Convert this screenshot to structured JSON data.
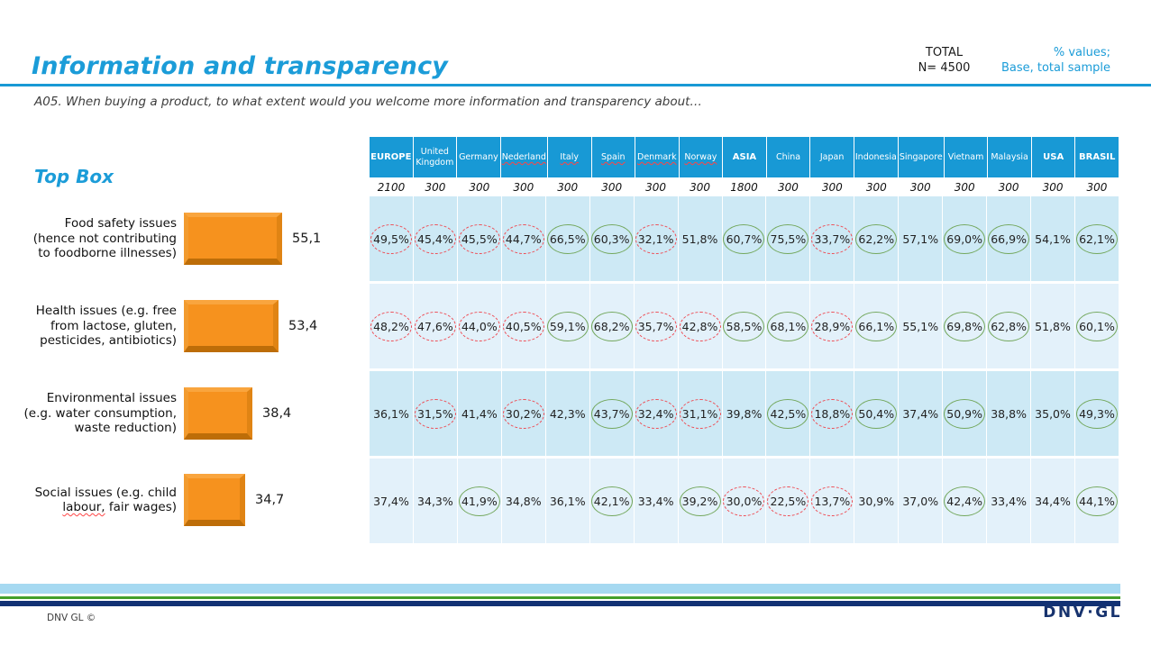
{
  "slide": {
    "title": "Information and transparency",
    "question": "A05. When buying a product, to what extent would you welcome more information and transparency about…",
    "total_label": "TOTAL",
    "total_value": "N= 4500",
    "values_note": "% values;",
    "base_note": "Base, total sample",
    "top_box_label": "Top Box",
    "footer_copyright": "DNV GL ©",
    "footer_logo": "DNV·GL"
  },
  "colors": {
    "accent_blue": "#1B9CD8",
    "table_header_blue": "#1899D5",
    "row_shade_dark": "#CDE9F5",
    "row_shade_light": "#E3F1FA",
    "bar_orange": "#F6921E",
    "circle_green": "#74A85E",
    "circle_red_dashed": "#EF4A52",
    "stripe_lightblue": "#A6D9F1",
    "stripe_green": "#43A02C",
    "stripe_navy": "#123274",
    "logo_navy": "#17336E"
  },
  "chart_data": {
    "type": "bar",
    "orientation": "horizontal",
    "title": "Top Box",
    "categories": [
      "Food safety issues (hence not contributing to foodborne illnesses)",
      "Health issues (e.g. free from lactose, gluten, pesticides, antibiotics)",
      "Environmental issues (e.g. water consumption, waste reduction)",
      "Social issues (e.g. child labour, fair wages)"
    ],
    "values": [
      55.1,
      53.4,
      38.4,
      34.7
    ],
    "value_labels": [
      "55,1",
      "53,4",
      "38,4",
      "34,7"
    ],
    "xlim": [
      0,
      100
    ],
    "bar_color": "#F6921E",
    "legend": "none",
    "grid": "off"
  },
  "table": {
    "columns": [
      {
        "label": "EUROPE",
        "n": "2100",
        "bold": true
      },
      {
        "label": "United Kingdom",
        "n": "300"
      },
      {
        "label": "Germany",
        "n": "300"
      },
      {
        "label": "Nederland",
        "n": "300",
        "spellcheck": true
      },
      {
        "label": "Italy",
        "n": "300",
        "spellcheck": true
      },
      {
        "label": "Spain",
        "n": "300",
        "spellcheck": true
      },
      {
        "label": "Denmark",
        "n": "300",
        "spellcheck": true
      },
      {
        "label": "Norway",
        "n": "300",
        "spellcheck": true
      },
      {
        "label": "ASIA",
        "n": "1800",
        "bold": true
      },
      {
        "label": "China",
        "n": "300"
      },
      {
        "label": "Japan",
        "n": "300"
      },
      {
        "label": "Indonesia",
        "n": "300"
      },
      {
        "label": "Singapore",
        "n": "300"
      },
      {
        "label": "Vietnam",
        "n": "300"
      },
      {
        "label": "Malaysia",
        "n": "300"
      },
      {
        "label": "USA",
        "n": "300",
        "bold": true
      },
      {
        "label": "BRASIL",
        "n": "300",
        "bold": true
      }
    ],
    "rows": [
      {
        "label": "Food safety issues (hence not contributing to foodborne illnesses)",
        "cells": [
          {
            "v": "49,5%",
            "c": "red"
          },
          {
            "v": "45,4%",
            "c": "red"
          },
          {
            "v": "45,5%",
            "c": "red"
          },
          {
            "v": "44,7%",
            "c": "red"
          },
          {
            "v": "66,5%",
            "c": "green"
          },
          {
            "v": "60,3%",
            "c": "green"
          },
          {
            "v": "32,1%",
            "c": "red"
          },
          {
            "v": "51,8%",
            "c": "none"
          },
          {
            "v": "60,7%",
            "c": "green"
          },
          {
            "v": "75,5%",
            "c": "green"
          },
          {
            "v": "33,7%",
            "c": "red"
          },
          {
            "v": "62,2%",
            "c": "green"
          },
          {
            "v": "57,1%",
            "c": "none"
          },
          {
            "v": "69,0%",
            "c": "green"
          },
          {
            "v": "66,9%",
            "c": "green"
          },
          {
            "v": "54,1%",
            "c": "none"
          },
          {
            "v": "62,1%",
            "c": "green"
          }
        ]
      },
      {
        "label": "Health issues (e.g. free from lactose, gluten, pesticides, antibiotics)",
        "cells": [
          {
            "v": "48,2%",
            "c": "red"
          },
          {
            "v": "47,6%",
            "c": "red"
          },
          {
            "v": "44,0%",
            "c": "red"
          },
          {
            "v": "40,5%",
            "c": "red"
          },
          {
            "v": "59,1%",
            "c": "green"
          },
          {
            "v": "68,2%",
            "c": "green"
          },
          {
            "v": "35,7%",
            "c": "red"
          },
          {
            "v": "42,8%",
            "c": "red"
          },
          {
            "v": "58,5%",
            "c": "green"
          },
          {
            "v": "68,1%",
            "c": "green"
          },
          {
            "v": "28,9%",
            "c": "red"
          },
          {
            "v": "66,1%",
            "c": "green"
          },
          {
            "v": "55,1%",
            "c": "none"
          },
          {
            "v": "69,8%",
            "c": "green"
          },
          {
            "v": "62,8%",
            "c": "green"
          },
          {
            "v": "51,8%",
            "c": "none"
          },
          {
            "v": "60,1%",
            "c": "green"
          }
        ]
      },
      {
        "label": "Environmental issues (e.g. water consumption, waste reduction)",
        "cells": [
          {
            "v": "36,1%",
            "c": "none"
          },
          {
            "v": "31,5%",
            "c": "red"
          },
          {
            "v": "41,4%",
            "c": "none"
          },
          {
            "v": "30,2%",
            "c": "red"
          },
          {
            "v": "42,3%",
            "c": "none"
          },
          {
            "v": "43,7%",
            "c": "green"
          },
          {
            "v": "32,4%",
            "c": "red"
          },
          {
            "v": "31,1%",
            "c": "red"
          },
          {
            "v": "39,8%",
            "c": "none"
          },
          {
            "v": "42,5%",
            "c": "green"
          },
          {
            "v": "18,8%",
            "c": "red"
          },
          {
            "v": "50,4%",
            "c": "green"
          },
          {
            "v": "37,4%",
            "c": "none"
          },
          {
            "v": "50,9%",
            "c": "green"
          },
          {
            "v": "38,8%",
            "c": "none"
          },
          {
            "v": "35,0%",
            "c": "none"
          },
          {
            "v": "49,3%",
            "c": "green"
          }
        ]
      },
      {
        "label": "Social issues (e.g. child labour, fair wages)",
        "squiggle": "labour,",
        "cells": [
          {
            "v": "37,4%",
            "c": "none"
          },
          {
            "v": "34,3%",
            "c": "none"
          },
          {
            "v": "41,9%",
            "c": "green"
          },
          {
            "v": "34,8%",
            "c": "none"
          },
          {
            "v": "36,1%",
            "c": "none"
          },
          {
            "v": "42,1%",
            "c": "green"
          },
          {
            "v": "33,4%",
            "c": "none"
          },
          {
            "v": "39,2%",
            "c": "green"
          },
          {
            "v": "30,0%",
            "c": "red"
          },
          {
            "v": "22,5%",
            "c": "red"
          },
          {
            "v": "13,7%",
            "c": "red"
          },
          {
            "v": "30,9%",
            "c": "none"
          },
          {
            "v": "37,0%",
            "c": "none"
          },
          {
            "v": "42,4%",
            "c": "green"
          },
          {
            "v": "33,4%",
            "c": "none"
          },
          {
            "v": "34,4%",
            "c": "none"
          },
          {
            "v": "44,1%",
            "c": "green"
          }
        ]
      }
    ]
  }
}
